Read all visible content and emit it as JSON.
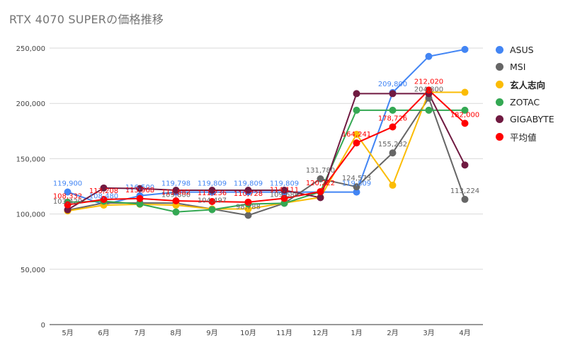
{
  "chart_data": {
    "type": "line",
    "title": "RTX 4070 SUPERの価格推移",
    "xlabel": "",
    "ylabel": "",
    "categories": [
      "5月",
      "6月",
      "7月",
      "8月",
      "9月",
      "10月",
      "11月",
      "12月",
      "1月",
      "2月",
      "3月",
      "4月"
    ],
    "ylim": [
      0,
      250000
    ],
    "yticks": [
      0,
      50000,
      100000,
      150000,
      200000,
      250000
    ],
    "ytick_labels": [
      "0",
      "50,000",
      "100,000",
      "150,000",
      "200,000",
      "250,000"
    ],
    "grid": true,
    "legend_position": "right",
    "series": [
      {
        "name": "ASUS",
        "color": "#4285f4",
        "values": [
          119900,
          108480,
          116500,
          119798,
          119809,
          119809,
          119809,
          119809,
          119809,
          209800,
          242500,
          248800
        ],
        "labels": [
          "119,900",
          "108,480",
          "116,500",
          "119,798",
          "119,809",
          "119,809",
          "119,809",
          "",
          "119,809",
          "209,800",
          "",
          ""
        ]
      },
      {
        "name": "MSI",
        "color": "#666666",
        "values": [
          103429,
          110000,
          110000,
          109800,
          104497,
          98788,
          109689,
          131780,
          124573,
          155232,
          204800,
          113224
        ],
        "labels": [
          "103,429",
          "",
          "",
          "109,800",
          "104,497",
          "98,788",
          "109,689",
          "131,780",
          "124,573",
          "155,232",
          "204,800",
          "113,224"
        ]
      },
      {
        "name": "玄人志向",
        "color": "#fbbc04",
        "values": [
          102800,
          108000,
          108800,
          108000,
          104500,
          104500,
          110000,
          115000,
          172000,
          126000,
          210000,
          210000
        ],
        "labels": []
      },
      {
        "name": "ZOTAC",
        "color": "#34a853",
        "values": [
          110700,
          111500,
          109000,
          101800,
          103900,
          109000,
          109700,
          120000,
          193800,
          193800,
          193800,
          193800
        ],
        "labels": []
      },
      {
        "name": "GIGABYTE",
        "color": "#701a41",
        "values": [
          103800,
          123500,
          123000,
          121500,
          121500,
          121500,
          121500,
          114800,
          208800,
          208800,
          208800,
          144300
        ],
        "labels": []
      },
      {
        "name": "平均値",
        "color": "#ff0000",
        "values": [
          108332,
          113208,
          113968,
          111882,
          111236,
          110728,
          114111,
          120222,
          164241,
          178726,
          212020,
          182000
        ],
        "labels": [
          "108,332",
          "113,208",
          "113,968",
          "111,882",
          "111,236",
          "110,728",
          "114,111",
          "120,222",
          "164,241",
          "178,726",
          "212,020",
          "182,000"
        ]
      }
    ]
  }
}
